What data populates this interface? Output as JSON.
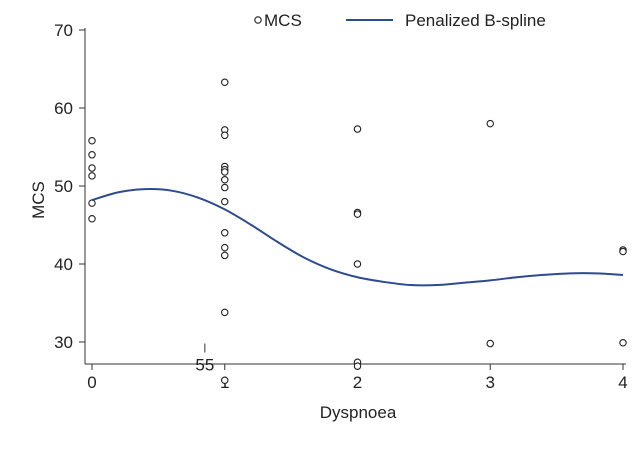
{
  "chart_data": {
    "type": "scatter",
    "title": "",
    "xlabel": "Dyspnoea",
    "ylabel": "MCS",
    "xlim": [
      -0.1,
      4.05
    ],
    "ylim": [
      24,
      70
    ],
    "x_ticks": [
      0,
      1,
      2,
      3,
      4
    ],
    "y_ticks": [
      30,
      40,
      50,
      60,
      70
    ],
    "grid": false,
    "legend": {
      "placement": "top-center",
      "items": [
        "MCS",
        "Penalized B-spline"
      ]
    },
    "annotations": [
      {
        "text": "55",
        "x": 0.85,
        "y": 27.5
      }
    ],
    "series": [
      {
        "name": "MCS",
        "kind": "scatter",
        "points": [
          [
            0,
            55.8
          ],
          [
            0,
            54.0
          ],
          [
            0,
            52.3
          ],
          [
            0,
            51.3
          ],
          [
            0,
            47.8
          ],
          [
            0,
            45.8
          ],
          [
            1,
            63.3
          ],
          [
            1,
            57.2
          ],
          [
            1,
            56.5
          ],
          [
            1,
            52.5
          ],
          [
            1,
            52.1
          ],
          [
            1,
            51.8
          ],
          [
            1,
            50.8
          ],
          [
            1,
            49.8
          ],
          [
            1,
            48.0
          ],
          [
            1,
            44.0
          ],
          [
            1,
            42.1
          ],
          [
            1,
            41.1
          ],
          [
            1,
            33.8
          ],
          [
            1,
            25.1
          ],
          [
            2,
            57.3
          ],
          [
            2,
            46.6
          ],
          [
            2,
            46.4
          ],
          [
            2,
            40.0
          ],
          [
            2,
            27.4
          ],
          [
            2,
            26.9
          ],
          [
            3,
            58.0
          ],
          [
            3,
            29.8
          ],
          [
            4,
            41.8
          ],
          [
            4,
            41.6
          ],
          [
            4,
            29.9
          ]
        ]
      },
      {
        "name": "Penalized B-spline",
        "kind": "line",
        "points": [
          [
            0,
            48.2
          ],
          [
            0.2,
            49.2
          ],
          [
            0.4,
            49.6
          ],
          [
            0.6,
            49.4
          ],
          [
            0.8,
            48.5
          ],
          [
            1.0,
            47.0
          ],
          [
            1.2,
            45.0
          ],
          [
            1.4,
            42.8
          ],
          [
            1.6,
            40.8
          ],
          [
            1.8,
            39.3
          ],
          [
            2.0,
            38.3
          ],
          [
            2.2,
            37.7
          ],
          [
            2.4,
            37.3
          ],
          [
            2.6,
            37.3
          ],
          [
            2.8,
            37.6
          ],
          [
            3.0,
            37.9
          ],
          [
            3.2,
            38.3
          ],
          [
            3.4,
            38.6
          ],
          [
            3.6,
            38.8
          ],
          [
            3.8,
            38.8
          ],
          [
            4.0,
            38.6
          ]
        ]
      }
    ],
    "colors": {
      "spline": "#2e4b8f",
      "points": "#222222"
    }
  }
}
